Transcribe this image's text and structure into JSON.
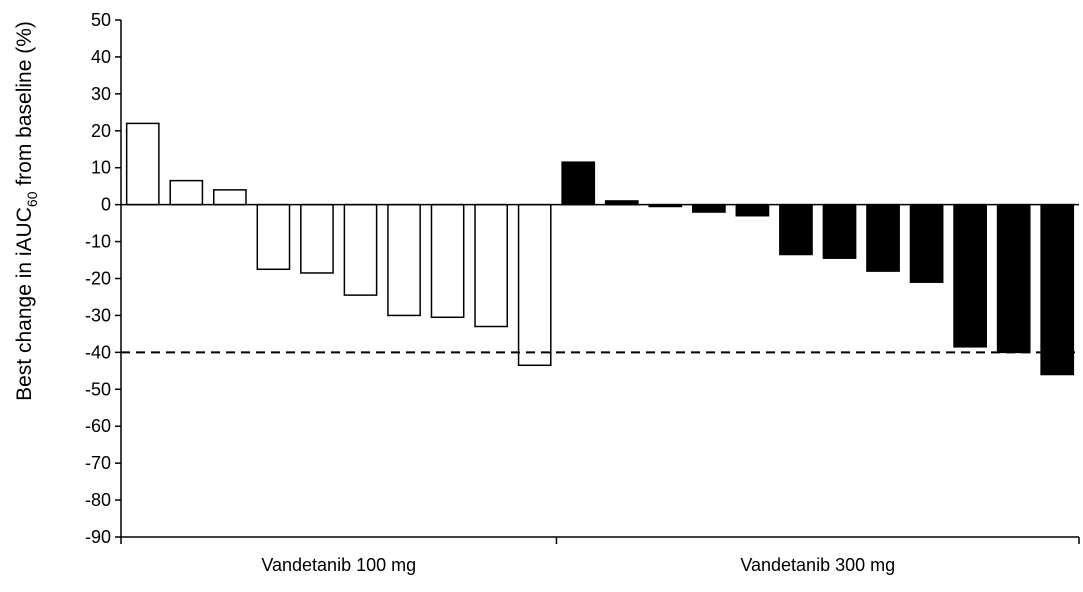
{
  "chart_data": {
    "type": "bar",
    "ylabel": {
      "prefix": "Best change in iAUC",
      "subscript": "60",
      "suffix": " from baseline (%)"
    },
    "ylim": [
      -90,
      50
    ],
    "yticks": [
      "50",
      "40",
      "30",
      "20",
      "10",
      "0",
      "-10",
      "-20",
      "-30",
      "-40",
      "-50",
      "-60",
      "-70",
      "-80",
      "-90"
    ],
    "grid": false,
    "reference_line": {
      "y": -40,
      "style": "dashed"
    },
    "groups": [
      {
        "label": "Vandetanib 100 mg",
        "fill": "#ffffff",
        "stroke": "#000000",
        "values": [
          22,
          6.5,
          4,
          -17.5,
          -18.5,
          -24.5,
          -30,
          -30.5,
          -33,
          -43.5
        ]
      },
      {
        "label": "Vandetanib 300 mg",
        "fill": "#000000",
        "stroke": "#000000",
        "values": [
          11.5,
          1,
          -0.5,
          -2,
          -3,
          -13.5,
          -14.5,
          -18,
          -21,
          -38.5,
          -40,
          -46
        ]
      }
    ]
  }
}
